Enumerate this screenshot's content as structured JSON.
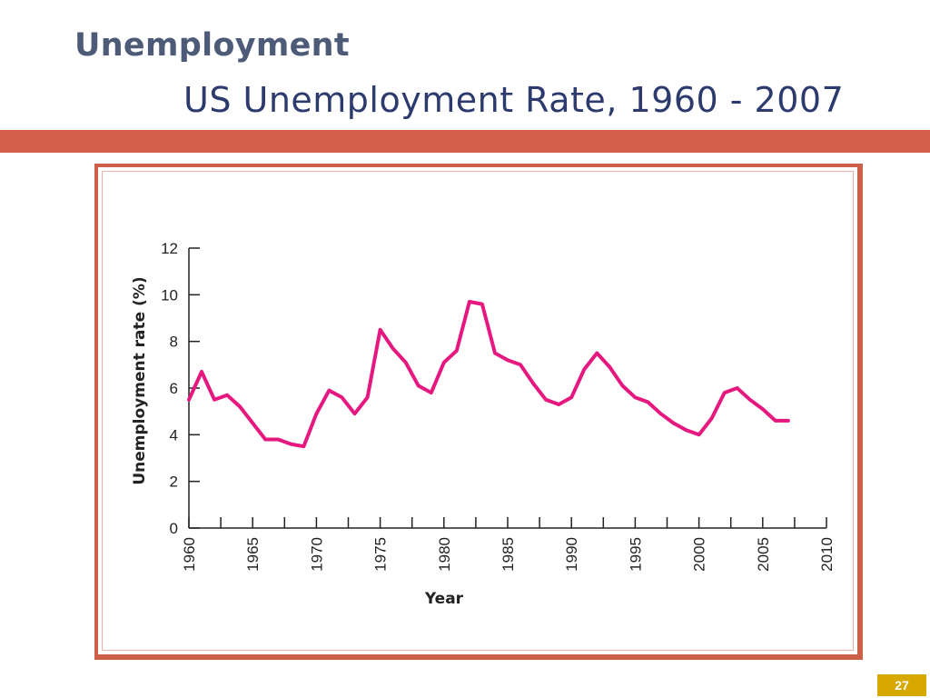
{
  "slide": {
    "title": "Unemployment",
    "subtitle": "US Unemployment Rate, 1960 - 2007",
    "page_number": "27"
  },
  "colors": {
    "title": "#4d5a78",
    "subtitle": "#2c3a6e",
    "rule": "#d45f4b",
    "frame": "#cc6048",
    "line": "#e6187f",
    "page_badge": "#d6a800"
  },
  "chart_data": {
    "type": "line",
    "title": "",
    "xlabel": "Year",
    "ylabel": "Unemployment rate (%)",
    "xlim": [
      1960,
      2010
    ],
    "ylim": [
      0,
      12
    ],
    "xticks": [
      "1960",
      "1965",
      "1970",
      "1975",
      "1980",
      "1985",
      "1990",
      "1995",
      "2000",
      "2005",
      "2010"
    ],
    "yticks": [
      "0",
      "2",
      "4",
      "6",
      "8",
      "10",
      "12"
    ],
    "grid": false,
    "series": [
      {
        "x": [
          1960,
          1961,
          1962,
          1963,
          1964,
          1965,
          1966,
          1967,
          1968,
          1969,
          1970,
          1971,
          1972,
          1973,
          1974,
          1975,
          1976,
          1977,
          1978,
          1979,
          1980,
          1981,
          1982,
          1983,
          1984,
          1985,
          1986,
          1987,
          1988,
          1989,
          1990,
          1991,
          1992,
          1993,
          1994,
          1995,
          1996,
          1997,
          1998,
          1999,
          2000,
          2001,
          2002,
          2003,
          2004,
          2005,
          2006,
          2007
        ],
        "values": [
          5.5,
          6.7,
          5.5,
          5.7,
          5.2,
          4.5,
          3.8,
          3.8,
          3.6,
          3.5,
          4.9,
          5.9,
          5.6,
          4.9,
          5.6,
          8.5,
          7.7,
          7.1,
          6.1,
          5.8,
          7.1,
          7.6,
          9.7,
          9.6,
          7.5,
          7.2,
          7.0,
          6.2,
          5.5,
          5.3,
          5.6,
          6.8,
          7.5,
          6.9,
          6.1,
          5.6,
          5.4,
          4.9,
          4.5,
          4.2,
          4.0,
          4.7,
          5.8,
          6.0,
          5.5,
          5.1,
          4.6,
          4.6
        ]
      }
    ]
  }
}
